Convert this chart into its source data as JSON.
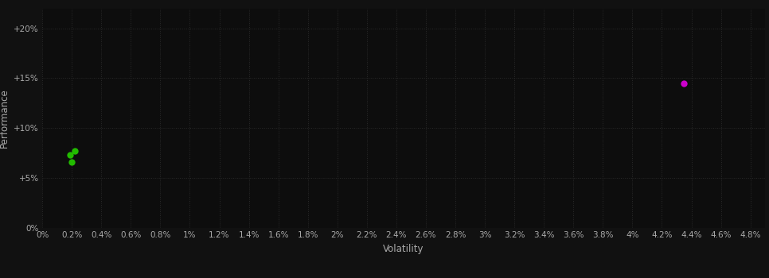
{
  "background_color": "#111111",
  "plot_bg_color": "#0d0d0d",
  "grid_color": "#2a2a2a",
  "text_color": "#aaaaaa",
  "xlabel": "Volatility",
  "ylabel": "Performance",
  "xlim": [
    0,
    0.049
  ],
  "ylim": [
    0,
    0.22
  ],
  "xtick_values": [
    0,
    0.002,
    0.004,
    0.006,
    0.008,
    0.01,
    0.012,
    0.014,
    0.016,
    0.018,
    0.02,
    0.022,
    0.024,
    0.026,
    0.028,
    0.03,
    0.032,
    0.034,
    0.036,
    0.038,
    0.04,
    0.042,
    0.044,
    0.046,
    0.048
  ],
  "ytick_values": [
    0,
    0.05,
    0.1,
    0.15,
    0.2
  ],
  "green_points": [
    [
      0.0019,
      0.073
    ],
    [
      0.0022,
      0.077
    ],
    [
      0.002,
      0.066
    ]
  ],
  "magenta_points": [
    [
      0.0435,
      0.145
    ]
  ],
  "green_color": "#22bb00",
  "magenta_color": "#cc00cc",
  "marker_size": 6,
  "figsize": [
    9.66,
    3.5
  ],
  "dpi": 100
}
